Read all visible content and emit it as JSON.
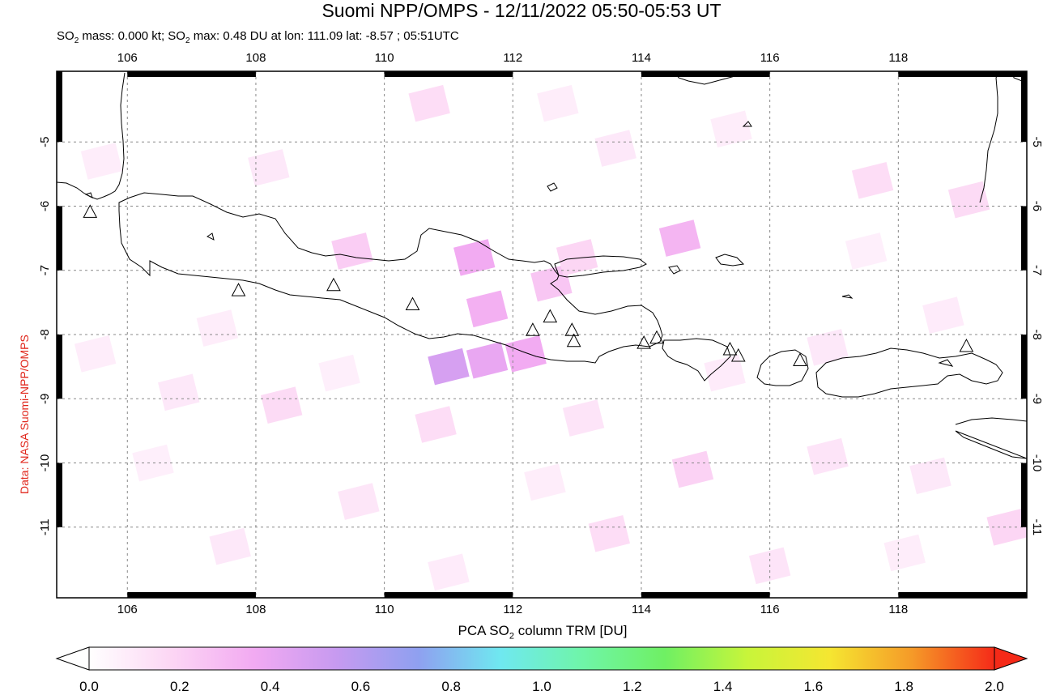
{
  "title": "Suomi NPP/OMPS - 12/11/2022 05:50-05:53 UT",
  "subtitle": {
    "pre": "SO",
    "sub": "2",
    "mid": " mass: 0.000 kt; SO",
    "sub2": "2",
    "post": " max: 0.48 DU at lon: 111.09 lat: -8.57 ; 05:51UTC"
  },
  "side_credit": "Data: NASA Suomi-NPP/OMPS",
  "colorbar": {
    "title_pre": "PCA SO",
    "title_sub": "2",
    "title_post": " column TRM [DU]",
    "ticks": [
      "0.0",
      "0.2",
      "0.4",
      "0.6",
      "0.8",
      "1.0",
      "1.2",
      "1.4",
      "1.6",
      "1.8",
      "2.0"
    ],
    "range": [
      0.0,
      2.0
    ],
    "colors": [
      "#ffffff",
      "#fcd6f4",
      "#f2aaf2",
      "#c79af0",
      "#8fa0f0",
      "#6fe8f0",
      "#6ff5a8",
      "#6ff063",
      "#c8f53a",
      "#f5e631",
      "#f59a28",
      "#f52a18"
    ]
  },
  "map": {
    "lon_range": [
      104.9,
      120.0
    ],
    "lat_range": [
      -12.1,
      -3.9
    ],
    "x_ticks": [
      "106",
      "108",
      "110",
      "112",
      "114",
      "116",
      "118"
    ],
    "y_ticks": [
      "-5",
      "-6",
      "-7",
      "-8",
      "-9",
      "-10",
      "-11"
    ],
    "volcanoes": [
      {
        "lon": 105.42,
        "lat": -6.1
      },
      {
        "lon": 107.73,
        "lat": -7.32
      },
      {
        "lon": 109.21,
        "lat": -7.24
      },
      {
        "lon": 110.44,
        "lat": -7.54
      },
      {
        "lon": 112.31,
        "lat": -7.94
      },
      {
        "lon": 112.58,
        "lat": -7.73
      },
      {
        "lon": 112.92,
        "lat": -7.94
      },
      {
        "lon": 112.95,
        "lat": -8.11
      },
      {
        "lon": 114.04,
        "lat": -8.14
      },
      {
        "lon": 114.24,
        "lat": -8.06
      },
      {
        "lon": 115.38,
        "lat": -8.24
      },
      {
        "lon": 115.51,
        "lat": -8.34
      },
      {
        "lon": 116.47,
        "lat": -8.41
      },
      {
        "lon": 119.06,
        "lat": -8.19
      }
    ],
    "so2_cells": [
      {
        "lon": 111.0,
        "lat": -8.5,
        "v": 0.48
      },
      {
        "lon": 111.6,
        "lat": -8.4,
        "v": 0.4
      },
      {
        "lon": 112.2,
        "lat": -8.3,
        "v": 0.36
      },
      {
        "lon": 111.4,
        "lat": -6.8,
        "v": 0.36
      },
      {
        "lon": 111.6,
        "lat": -7.6,
        "v": 0.34
      },
      {
        "lon": 114.6,
        "lat": -6.5,
        "v": 0.32
      },
      {
        "lon": 112.6,
        "lat": -7.2,
        "v": 0.25
      },
      {
        "lon": 109.5,
        "lat": -6.7,
        "v": 0.22
      },
      {
        "lon": 113.0,
        "lat": -6.8,
        "v": 0.18
      },
      {
        "lon": 117.6,
        "lat": -5.6,
        "v": 0.15
      },
      {
        "lon": 119.1,
        "lat": -5.9,
        "v": 0.16
      },
      {
        "lon": 110.7,
        "lat": -4.4,
        "v": 0.15
      },
      {
        "lon": 106.8,
        "lat": -8.9,
        "v": 0.1
      },
      {
        "lon": 105.5,
        "lat": -8.3,
        "v": 0.08
      },
      {
        "lon": 108.4,
        "lat": -9.1,
        "v": 0.16
      },
      {
        "lon": 110.8,
        "lat": -9.4,
        "v": 0.15
      },
      {
        "lon": 113.1,
        "lat": -9.3,
        "v": 0.12
      },
      {
        "lon": 114.8,
        "lat": -10.1,
        "v": 0.2
      },
      {
        "lon": 116.9,
        "lat": -9.9,
        "v": 0.12
      },
      {
        "lon": 118.5,
        "lat": -10.2,
        "v": 0.1
      },
      {
        "lon": 119.7,
        "lat": -11.0,
        "v": 0.18
      },
      {
        "lon": 113.5,
        "lat": -11.1,
        "v": 0.15
      },
      {
        "lon": 109.6,
        "lat": -10.6,
        "v": 0.11
      },
      {
        "lon": 107.6,
        "lat": -11.3,
        "v": 0.1
      },
      {
        "lon": 116.0,
        "lat": -11.6,
        "v": 0.12
      },
      {
        "lon": 105.6,
        "lat": -5.3,
        "v": 0.08
      },
      {
        "lon": 108.2,
        "lat": -5.4,
        "v": 0.1
      },
      {
        "lon": 113.6,
        "lat": -5.1,
        "v": 0.1
      },
      {
        "lon": 115.4,
        "lat": -4.8,
        "v": 0.08
      },
      {
        "lon": 112.7,
        "lat": -4.4,
        "v": 0.08
      },
      {
        "lon": 116.9,
        "lat": -8.2,
        "v": 0.1
      },
      {
        "lon": 118.7,
        "lat": -7.7,
        "v": 0.09
      },
      {
        "lon": 107.4,
        "lat": -7.9,
        "v": 0.08
      },
      {
        "lon": 109.3,
        "lat": -8.6,
        "v": 0.07
      },
      {
        "lon": 115.3,
        "lat": -8.6,
        "v": 0.09
      },
      {
        "lon": 112.5,
        "lat": -10.3,
        "v": 0.08
      },
      {
        "lon": 111.0,
        "lat": -11.7,
        "v": 0.09
      },
      {
        "lon": 118.1,
        "lat": -11.4,
        "v": 0.08
      },
      {
        "lon": 106.4,
        "lat": -10.0,
        "v": 0.07
      },
      {
        "lon": 117.5,
        "lat": -6.7,
        "v": 0.07
      }
    ]
  }
}
